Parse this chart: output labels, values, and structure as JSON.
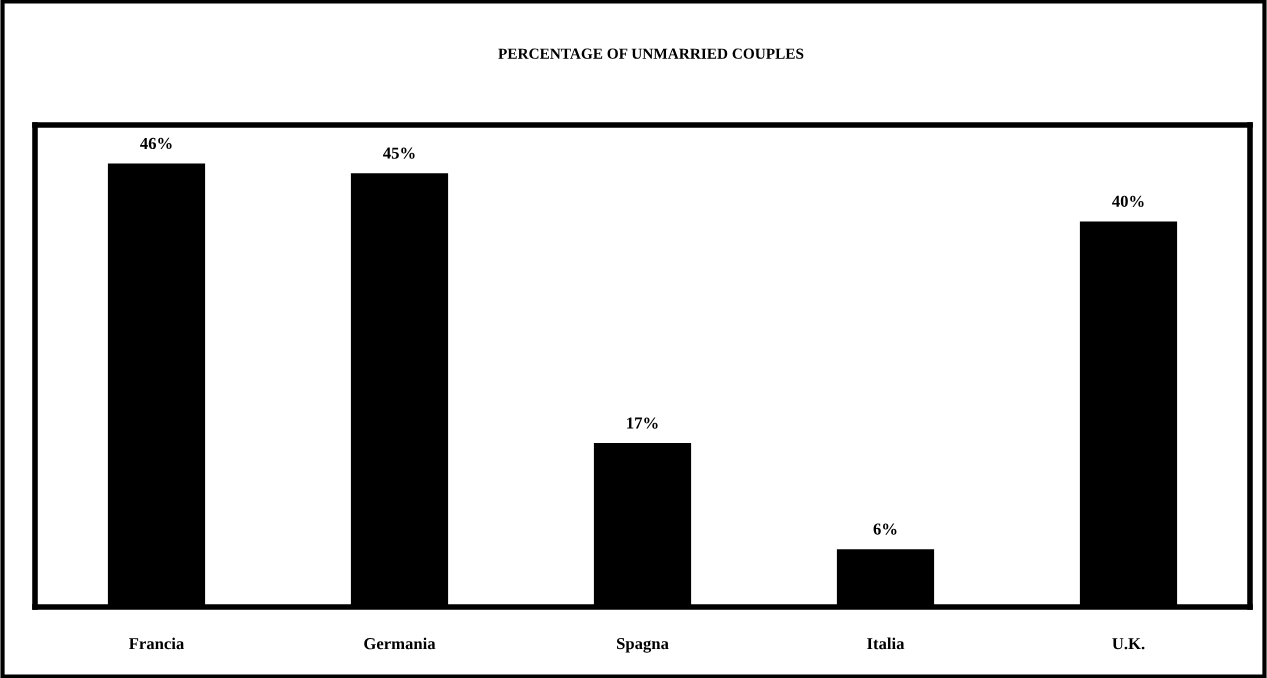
{
  "chart_data": {
    "type": "bar",
    "title": "PERCENTAGE OF UNMARRIED COUPLES",
    "categories": [
      "Francia",
      "Germania",
      "Spagna",
      "Italia",
      "U.K."
    ],
    "values": [
      46,
      45,
      17,
      6,
      40
    ],
    "value_labels": [
      "46%",
      "45%",
      "17%",
      "6%",
      "40%"
    ],
    "color": "#000000",
    "ylim": [
      0,
      50
    ],
    "tick_labels": "x",
    "grid": false,
    "legend": false
  }
}
